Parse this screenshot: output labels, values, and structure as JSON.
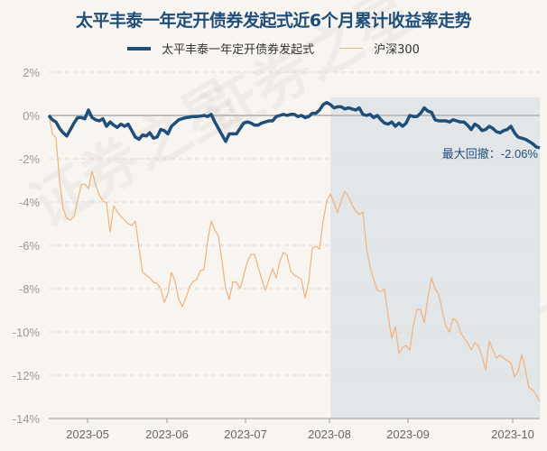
{
  "watermark": "证券之星",
  "chart_data": {
    "type": "line",
    "title": "太平丰泰一年定开债券发起式近6个月累计收益率走势",
    "xlabel": "",
    "ylabel": "",
    "ylim": [
      -14,
      2
    ],
    "yticks": [
      2,
      0,
      -2,
      -4,
      -6,
      -8,
      -10,
      -12,
      -14
    ],
    "ytick_labels": [
      "2%",
      "0%",
      "-2%",
      "-4%",
      "-6%",
      "-8%",
      "-10%",
      "-12%",
      "-14%"
    ],
    "xticks": [
      {
        "label": "2023-05",
        "index": 10.75
      },
      {
        "label": "2023-06",
        "index": 32.75
      },
      {
        "label": "2023-07",
        "index": 54.5
      },
      {
        "label": "2023-08",
        "index": 77.75
      },
      {
        "label": "2023-09",
        "index": 99.5
      },
      {
        "label": "2023-10",
        "index": 128.5
      }
    ],
    "grid": true,
    "legend_position": "top-center",
    "colors": {
      "fund": "#1f4e79",
      "index": "#f0b27a",
      "drawdown_shade": "#e3e6e9",
      "background": "#f8f5f1"
    },
    "max_drawdown": {
      "label": "最大回撤：-2.06%",
      "value": -2.06,
      "index_range": [
        78,
        136
      ]
    },
    "series": [
      {
        "name": "太平丰泰一年定开债券发起式",
        "values": [
          0,
          -0.2,
          -0.3,
          -0.6,
          -0.8,
          -0.95,
          -0.65,
          -0.35,
          -0.1,
          -0.1,
          -0.15,
          0.25,
          -0.1,
          -0.2,
          -0.25,
          -0.15,
          -0.5,
          -0.3,
          -0.45,
          -0.55,
          -0.4,
          -0.5,
          -0.4,
          -0.7,
          -1.0,
          -1.1,
          -0.9,
          -0.95,
          -0.8,
          -1.05,
          -1.0,
          -0.65,
          -0.7,
          -0.85,
          -0.5,
          -0.35,
          -0.2,
          -0.15,
          -0.1,
          -0.08,
          -0.05,
          -0.05,
          -0.03,
          0.0,
          -0.05,
          0.05,
          -0.3,
          -0.6,
          -0.9,
          -1.2,
          -0.85,
          -0.85,
          -0.85,
          -0.6,
          -0.35,
          -0.3,
          -0.35,
          -0.45,
          -0.45,
          -0.35,
          -0.3,
          -0.25,
          -0.25,
          -0.05,
          0.0,
          0.05,
          0.0,
          0.05,
          0.05,
          -0.05,
          0.0,
          -0.1,
          -0.05,
          0.1,
          0.1,
          0.25,
          0.5,
          0.6,
          0.5,
          0.35,
          0.4,
          0.4,
          0.3,
          0.35,
          0.3,
          0.25,
          0.35,
          0.05,
          0.0,
          0.05,
          -0.1,
          0.0,
          -0.2,
          -0.35,
          -0.4,
          -0.3,
          -0.5,
          -0.35,
          -0.5,
          -0.35,
          0.0,
          -0.05,
          -0.05,
          0.1,
          0.35,
          0.2,
          0.15,
          -0.2,
          -0.25,
          -0.25,
          -0.25,
          -0.3,
          -0.2,
          -0.25,
          -0.3,
          -0.3,
          -0.45,
          -0.65,
          -0.4,
          -0.5,
          -0.7,
          -0.65,
          -0.5,
          -0.6,
          -0.75,
          -0.8,
          -0.7,
          -0.65,
          -0.5,
          -0.8,
          -1.0,
          -1.05,
          -1.1,
          -1.2,
          -1.3,
          -1.45,
          -1.5
        ]
      },
      {
        "name": "沪深300",
        "values": [
          0,
          -0.83,
          -1.04,
          -3.0,
          -4.33,
          -4.75,
          -4.83,
          -4.67,
          -3.92,
          -3.21,
          -3.17,
          -3.38,
          -2.58,
          -3.21,
          -3.67,
          -3.96,
          -4.04,
          -5.38,
          -4.17,
          -4.46,
          -4.67,
          -4.83,
          -5.0,
          -5.08,
          -4.88,
          -6.13,
          -7.25,
          -7.38,
          -7.5,
          -7.71,
          -7.75,
          -8.0,
          -8.63,
          -8.25,
          -7.25,
          -7.67,
          -8.5,
          -8.83,
          -8.42,
          -7.92,
          -7.67,
          -7.58,
          -7.17,
          -7.13,
          -5.79,
          -4.88,
          -5.29,
          -5.58,
          -6.75,
          -8.0,
          -8.5,
          -7.67,
          -7.71,
          -8.0,
          -7.38,
          -6.75,
          -6.42,
          -6.42,
          -7.0,
          -7.58,
          -8.08,
          -7.58,
          -7.08,
          -7.5,
          -6.75,
          -6.33,
          -6.46,
          -7.17,
          -7.38,
          -7.46,
          -7.58,
          -8.42,
          -7.67,
          -6.13,
          -6.04,
          -6.17,
          -4.88,
          -3.96,
          -3.63,
          -4.04,
          -4.5,
          -3.92,
          -3.5,
          -3.75,
          -4.13,
          -4.42,
          -4.58,
          -4.46,
          -6.13,
          -7.0,
          -7.58,
          -8.08,
          -8.13,
          -8.04,
          -9.25,
          -10.29,
          -9.75,
          -11.0,
          -10.71,
          -10.63,
          -10.83,
          -9.67,
          -8.96,
          -8.96,
          -9.58,
          -8.42,
          -7.5,
          -8.0,
          -8.25,
          -9.04,
          -9.75,
          -10.0,
          -9.38,
          -9.5,
          -10.0,
          -10.29,
          -10.5,
          -10.83,
          -10.5,
          -10.63,
          -11.13,
          -11.75,
          -10.42,
          -10.83,
          -11.21,
          -11.08,
          -11.21,
          -11.33,
          -11.42,
          -12.08,
          -11.83,
          -11.04,
          -11.75,
          -12.58,
          -12.67,
          -12.92,
          -13.21
        ]
      }
    ]
  }
}
